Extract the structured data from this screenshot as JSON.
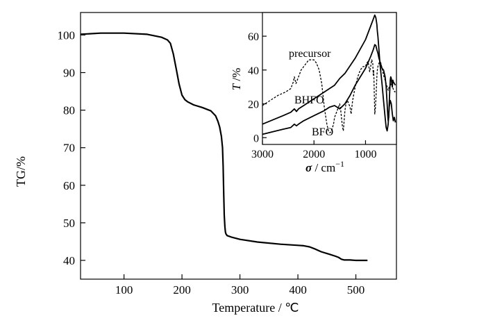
{
  "chart_data": [
    {
      "type": "line",
      "xlabel": "Temperature / ℃",
      "ylabel": "TG/%",
      "xlim": [
        25,
        570
      ],
      "ylim": [
        35,
        106
      ],
      "xticks": [
        100,
        200,
        300,
        400,
        500
      ],
      "yticks": [
        40,
        50,
        60,
        70,
        80,
        90,
        100
      ],
      "grid": false,
      "series": [
        {
          "x": [
            25,
            60,
            100,
            140,
            165,
            175,
            180,
            185,
            190,
            195,
            200,
            205,
            210,
            220,
            235,
            250,
            258,
            262,
            265,
            268,
            270,
            271,
            272,
            273,
            274,
            275,
            276,
            278,
            285,
            300,
            330,
            370,
            400,
            410,
            420,
            430,
            440,
            455,
            465,
            470,
            475,
            480,
            490,
            500,
            520
          ],
          "y": [
            100.2,
            100.5,
            100.5,
            100.2,
            99.4,
            98.7,
            97.8,
            95.0,
            91.0,
            87.0,
            84.0,
            82.8,
            82.2,
            81.4,
            80.7,
            79.8,
            78.5,
            77.0,
            75.5,
            73.0,
            70.0,
            65.0,
            58.0,
            52.0,
            49.0,
            47.5,
            47.0,
            46.6,
            46.2,
            45.6,
            44.9,
            44.3,
            44.0,
            43.9,
            43.6,
            43.0,
            42.3,
            41.6,
            41.1,
            40.8,
            40.3,
            40.1,
            40.1,
            40.0,
            40.0
          ]
        }
      ]
    },
    {
      "type": "line",
      "xlabel_symbol": "σ",
      "xlabel_unit": " / cm",
      "xlabel_exp": "−1",
      "ylabel_symbol": "T",
      "ylabel_unit": " /%",
      "xlim": [
        3000,
        400
      ],
      "ylim": [
        -4,
        74
      ],
      "xticks": [
        3000,
        2000,
        1000
      ],
      "yticks": [
        0,
        20,
        40,
        60
      ],
      "annotations": [
        "precursor",
        "BHFO",
        "BFO"
      ],
      "series": [
        {
          "name": "precursor",
          "style": "dashed",
          "x": [
            3000,
            2850,
            2700,
            2550,
            2450,
            2400,
            2380,
            2350,
            2300,
            2250,
            2150,
            2100,
            2000,
            1950,
            1900,
            1850,
            1800,
            1750,
            1720,
            1700,
            1680,
            1650,
            1620,
            1600,
            1550,
            1500,
            1480,
            1450,
            1430,
            1420,
            1400,
            1380,
            1350,
            1300,
            1280,
            1250,
            1200,
            1150,
            1100,
            1050,
            1000,
            980,
            950,
            920,
            900,
            880,
            860,
            850,
            840,
            830,
            820,
            810,
            800,
            790,
            780,
            770,
            760,
            740,
            720,
            700,
            680,
            650,
            620,
            600,
            580,
            560,
            540,
            520,
            500,
            480,
            450,
            430,
            420
          ],
          "y": [
            19,
            22,
            25,
            27,
            29,
            33,
            36,
            32,
            36,
            40,
            44,
            46,
            46,
            44,
            40,
            32,
            18,
            8,
            4,
            3,
            3,
            5,
            8,
            12,
            16,
            20,
            16,
            7,
            4,
            8,
            16,
            20,
            22,
            18,
            14,
            22,
            30,
            36,
            40,
            42,
            42,
            44,
            45,
            39,
            42,
            46,
            44,
            37,
            40,
            26,
            14,
            17,
            22,
            28,
            36,
            40,
            42,
            44,
            45,
            44,
            41,
            37,
            34,
            32,
            30,
            28,
            30,
            31,
            32,
            30,
            28,
            27,
            28
          ]
        },
        {
          "name": "BHFO",
          "style": "solid",
          "x": [
            3000,
            2800,
            2600,
            2450,
            2380,
            2340,
            2300,
            2200,
            2000,
            1800,
            1600,
            1500,
            1400,
            1200,
            1000,
            900,
            850,
            820,
            800,
            780,
            770,
            760,
            740,
            720,
            700,
            680,
            650,
            620,
            600,
            580,
            560,
            540,
            520,
            500,
            480,
            460,
            440,
            420
          ],
          "y": [
            8,
            10.5,
            13,
            15,
            17,
            15.5,
            17,
            19,
            23,
            27,
            31,
            35,
            38,
            47,
            58,
            66,
            70,
            72.5,
            71,
            67,
            63,
            60,
            52,
            44,
            38,
            32,
            22,
            12,
            6,
            4,
            8,
            18,
            22,
            20,
            14,
            10,
            12,
            9
          ]
        },
        {
          "name": "BFO",
          "style": "solid",
          "x": [
            3000,
            2800,
            2600,
            2450,
            2380,
            2340,
            2300,
            2200,
            2000,
            1800,
            1700,
            1600,
            1500,
            1400,
            1300,
            1200,
            1000,
            900,
            850,
            820,
            800,
            780,
            760,
            740,
            720,
            700,
            680,
            650,
            620,
            600,
            580,
            570,
            560,
            550,
            540,
            530,
            520,
            510,
            500,
            490,
            480,
            470,
            460,
            440,
            420
          ],
          "y": [
            2,
            3.5,
            5,
            6,
            8,
            7,
            8,
            10,
            13,
            16,
            18,
            19,
            17,
            20,
            25,
            31,
            41,
            48,
            52,
            55,
            54.5,
            52,
            50,
            47,
            45,
            43,
            41,
            40,
            36,
            30,
            20,
            14,
            10,
            12,
            20,
            28,
            34,
            36,
            35,
            32,
            30,
            34,
            33,
            32,
            31
          ]
        }
      ]
    }
  ]
}
